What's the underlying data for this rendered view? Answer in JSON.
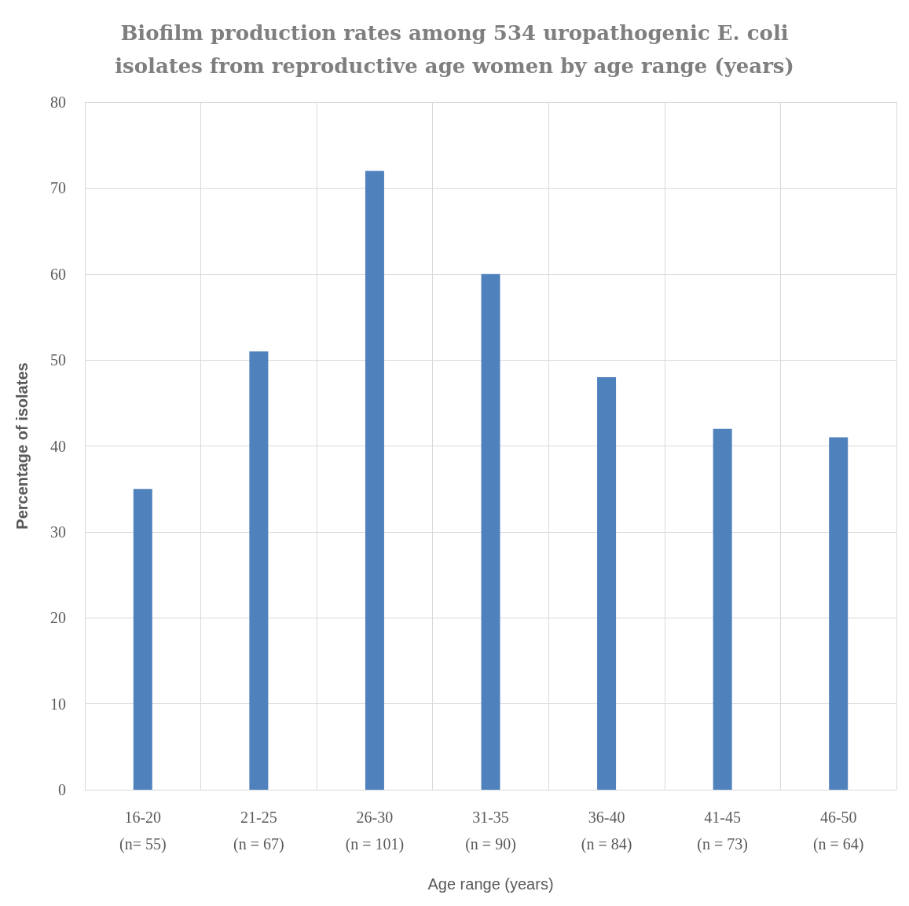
{
  "chart_data": {
    "type": "bar",
    "title": "Biofilm production rates among 534 uropathogenic E. coli\nisolates from reproductive age women by age range (years)",
    "xlabel": "Age range (years)",
    "ylabel": "Percentage of isolates",
    "categories": [
      "16-20\n(n= 55)",
      "21-25\n(n = 67)",
      "26-30\n(n = 101)",
      "31-35\n(n = 90)",
      "36-40\n(n = 84)",
      "41-45\n(n = 73)",
      "46-50\n(n = 64)"
    ],
    "values": [
      35,
      51,
      72,
      60,
      48,
      42,
      41
    ],
    "color": "#4f81bd",
    "ylim": [
      0,
      80
    ],
    "yticks": [
      0,
      10,
      20,
      30,
      40,
      50,
      60,
      70,
      80
    ],
    "grid": true
  }
}
